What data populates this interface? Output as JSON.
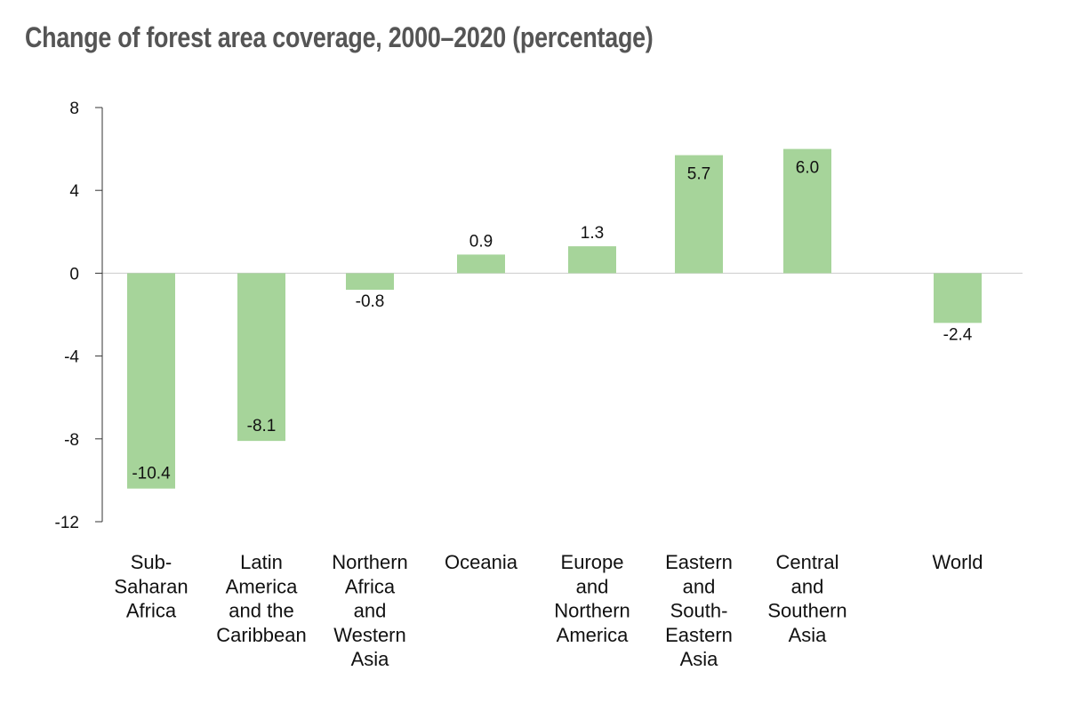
{
  "colors": {
    "bar": "#a6d49a",
    "axis": "#333333",
    "zero_line": "#cccccc",
    "title": "#555555",
    "text": "#111111"
  },
  "chart_data": {
    "type": "bar",
    "title": "Change of forest area coverage, 2000–2020 (percentage)",
    "xlabel": "",
    "ylabel": "",
    "ylim": [
      -12,
      8
    ],
    "yticks": [
      8,
      4,
      0,
      -4,
      -8,
      -12
    ],
    "grid": false,
    "legend": "none",
    "categories": [
      "Sub-Saharan Africa",
      "Latin America and the Caribbean",
      "Northern Africa and Western Asia",
      "Oceania",
      "Europe and Northern America",
      "Eastern and South-Eastern Asia",
      "Central and Southern Asia",
      "World"
    ],
    "category_lines": [
      [
        "Sub-",
        "Saharan",
        "Africa"
      ],
      [
        "Latin",
        "America",
        "and the",
        "Caribbean"
      ],
      [
        "Northern",
        "Africa",
        "and",
        "Western",
        "Asia"
      ],
      [
        "Oceania"
      ],
      [
        "Europe",
        "and",
        "Northern",
        "America"
      ],
      [
        "Eastern",
        "and",
        "South-",
        "Eastern",
        "Asia"
      ],
      [
        "Central",
        "and",
        "Southern",
        "Asia"
      ],
      [
        "World"
      ]
    ],
    "values": [
      -10.4,
      -8.1,
      -0.8,
      0.9,
      1.3,
      5.7,
      6.0,
      -2.4
    ],
    "data_labels": [
      "-10.4",
      "-8.1",
      "-0.8",
      "0.9",
      "1.3",
      "5.7",
      "6.0",
      "-2.4"
    ]
  }
}
